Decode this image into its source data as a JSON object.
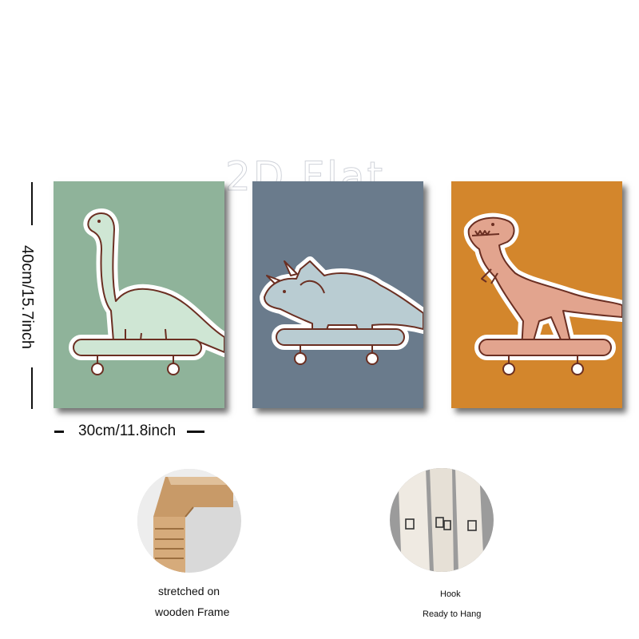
{
  "watermark": "2D Flat",
  "dimensions": {
    "height_label": "40cm/15.7inch",
    "width_label": "30cm/11.8inch"
  },
  "panels": [
    {
      "subject": "brachiosaurus-on-skateboard",
      "background": "#8fb39a",
      "dino_color": "#cfe6d4"
    },
    {
      "subject": "triceratops-on-skateboard",
      "background": "#6a7b8c",
      "dino_color": "#b9ccd2"
    },
    {
      "subject": "t-rex-on-skateboard",
      "background": "#d3862c",
      "dino_color": "#e2a48e"
    }
  ],
  "features": [
    {
      "icon": "wooden-frame-icon",
      "line1": "stretched on",
      "line2": "wooden Frame"
    },
    {
      "icon": "hook-icon",
      "line1": "Hook",
      "line2": "Ready to Hang"
    }
  ],
  "colors": {
    "outline": "#6b2f22",
    "sticker_border": "#ffffff"
  }
}
